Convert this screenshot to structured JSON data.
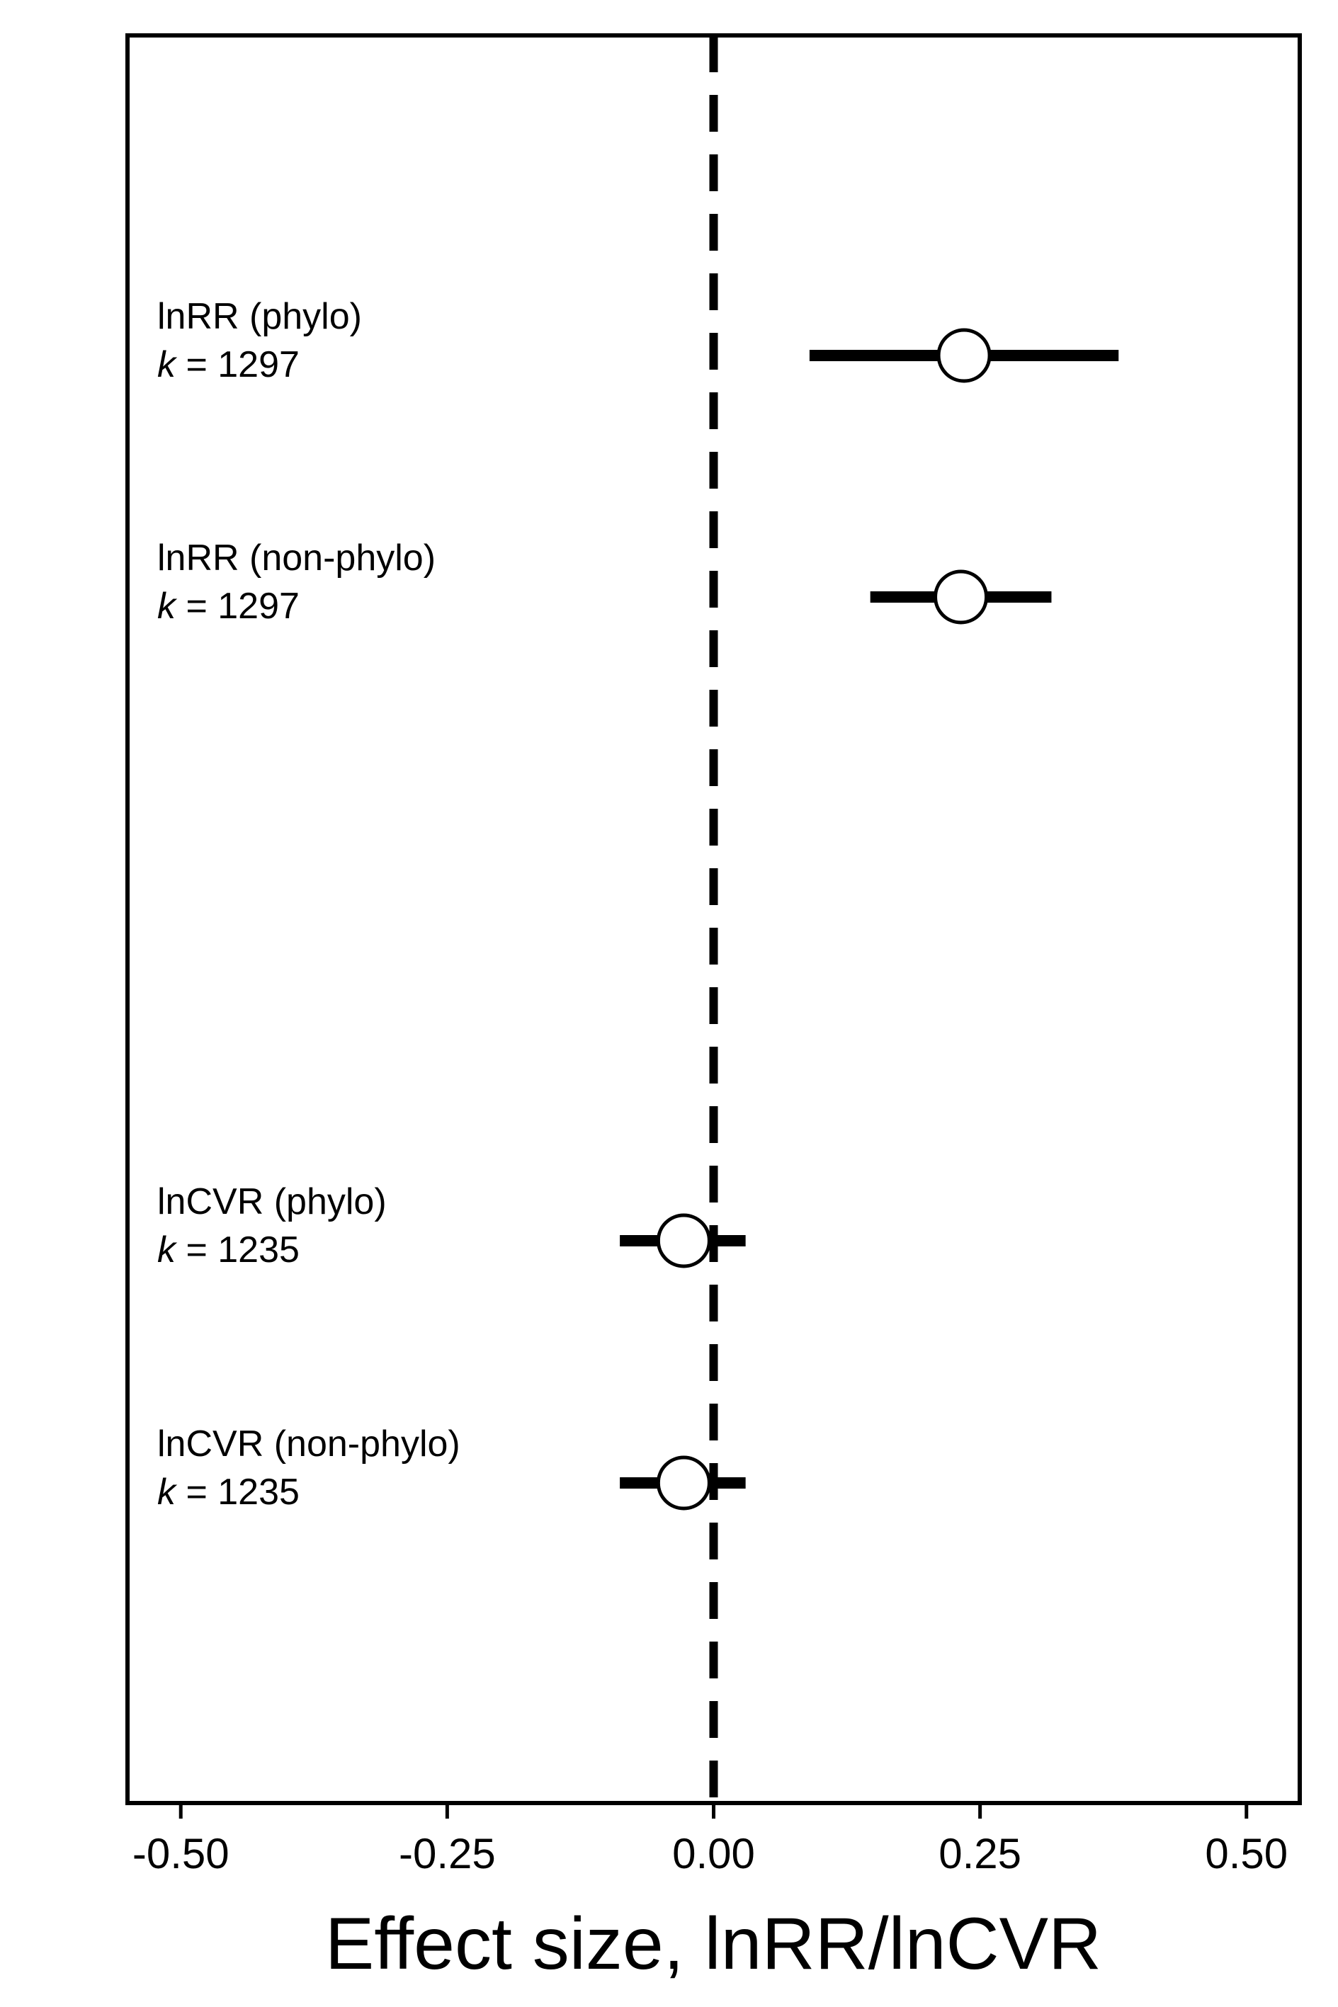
{
  "chart_data": {
    "type": "forest",
    "xlabel": "Effect size, lnRR/lnCVR",
    "xlim": [
      -0.55,
      0.55
    ],
    "x_ticks": [
      -0.5,
      -0.25,
      0.0,
      0.25,
      0.5
    ],
    "x_tick_labels": [
      "-0.50",
      "-0.25",
      "0.00",
      "0.25",
      "0.50"
    ],
    "reference_line": 0,
    "reference_line_style": "dashed",
    "grid": false,
    "k_label_symbol": "k",
    "k_label_equals": " = ",
    "rows": [
      {
        "label": "lnRR (phylo)",
        "k": "1297",
        "estimate": 0.235,
        "ci_lower": 0.09,
        "ci_upper": 0.38
      },
      {
        "label": "lnRR (non-phylo)",
        "k": "1297",
        "estimate": 0.232,
        "ci_lower": 0.147,
        "ci_upper": 0.317
      },
      {
        "label": "lnCVR (phylo)",
        "k": "1235",
        "estimate": -0.028,
        "ci_lower": -0.088,
        "ci_upper": 0.03
      },
      {
        "label": "lnCVR (non-phylo)",
        "k": "1235",
        "estimate": -0.028,
        "ci_lower": -0.088,
        "ci_upper": 0.03
      }
    ],
    "colors": {
      "line": "#000000",
      "point_fill": "#ffffff",
      "point_stroke": "#000000"
    }
  }
}
